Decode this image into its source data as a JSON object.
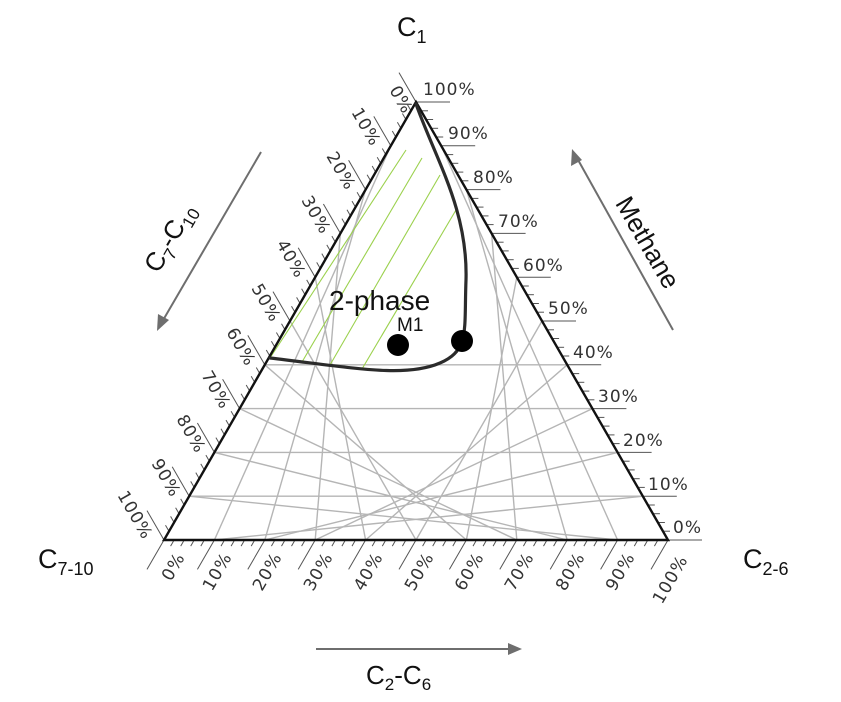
{
  "corners": {
    "top": {
      "main": "C",
      "sub": "1"
    },
    "left": {
      "main": "C",
      "sub": "7-10"
    },
    "right": {
      "main": "C",
      "sub": "2-6"
    }
  },
  "axes": {
    "left": {
      "main": "C",
      "sub1": "7",
      "mid": "-C",
      "sub2": "10"
    },
    "right": {
      "label": "Methane"
    },
    "bottom": {
      "main": "C",
      "sub1": "2",
      "mid": "-C",
      "sub2": "6"
    }
  },
  "tick_labels": {
    "left": [
      "0%",
      "10%",
      "20%",
      "30%",
      "40%",
      "50%",
      "60%",
      "70%",
      "80%",
      "90%",
      "100%"
    ],
    "right": [
      "100%",
      "90%",
      "80%",
      "70%",
      "60%",
      "50%",
      "40%",
      "30%",
      "20%",
      "10%",
      "0%"
    ],
    "bottom": [
      "0%",
      "10%",
      "20%",
      "30%",
      "40%",
      "50%",
      "60%",
      "70%",
      "80%",
      "90%",
      "100%"
    ]
  },
  "region_label": "2-phase",
  "point_label": "M1",
  "colors": {
    "triangle": "#111111",
    "grid": "#b5b5b5",
    "tie_lines": "#9bd14d",
    "envelope": "#2b2b2b",
    "arrows": "#6e6e6e",
    "points": "#000000"
  }
}
